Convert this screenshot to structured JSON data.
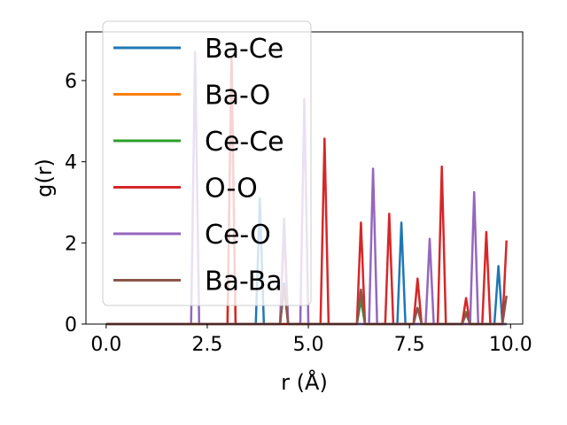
{
  "chart_data": {
    "type": "line",
    "xlabel": "r (Å)",
    "ylabel": "g(r)",
    "xlim": [
      -0.5,
      10.3
    ],
    "ylim": [
      0,
      7.2
    ],
    "xticks": [
      0.0,
      2.5,
      5.0,
      7.5,
      10.0
    ],
    "xtick_labels": [
      "0.0",
      "2.5",
      "5.0",
      "7.5",
      "10.0"
    ],
    "yticks": [
      0,
      2,
      4,
      6
    ],
    "ytick_labels": [
      "0",
      "2",
      "4",
      "6"
    ],
    "grid": false,
    "legend_position": "upper-left",
    "series": [
      {
        "name": "Ba-Ce",
        "color": "#1f77b4",
        "peaks": [
          [
            3.8,
            3.1
          ],
          [
            4.4,
            1.0
          ],
          [
            7.3,
            2.5
          ],
          [
            9.7,
            1.43
          ]
        ]
      },
      {
        "name": "Ba-O",
        "color": "#ff7f0e",
        "peaks": [
          [
            3.1,
            6.5
          ],
          [
            4.4,
            2.3
          ],
          [
            6.3,
            0.7
          ]
        ]
      },
      {
        "name": "Ce-Ce",
        "color": "#2ca02c",
        "peaks": [
          [
            6.3,
            0.6
          ],
          [
            8.9,
            0.3
          ]
        ]
      },
      {
        "name": "O-O",
        "color": "#d62728",
        "peaks": [
          [
            3.1,
            6.6
          ],
          [
            5.4,
            4.57
          ],
          [
            6.3,
            2.5
          ],
          [
            7.0,
            2.72
          ],
          [
            7.7,
            1.12
          ],
          [
            8.3,
            3.88
          ],
          [
            8.9,
            0.64
          ],
          [
            9.4,
            2.27
          ],
          [
            9.9,
            2.06
          ]
        ]
      },
      {
        "name": "Ce-O",
        "color": "#9467bd",
        "peaks": [
          [
            2.2,
            6.7
          ],
          [
            4.4,
            2.6
          ],
          [
            4.9,
            5.55
          ],
          [
            6.6,
            3.83
          ],
          [
            8.0,
            2.1
          ],
          [
            9.1,
            3.25
          ]
        ]
      },
      {
        "name": "Ba-Ba",
        "color": "#8c564b",
        "peaks": [
          [
            4.4,
            0.9
          ],
          [
            6.3,
            0.85
          ],
          [
            7.7,
            0.4
          ],
          [
            8.9,
            0.25
          ],
          [
            9.9,
            0.7
          ]
        ]
      }
    ]
  }
}
